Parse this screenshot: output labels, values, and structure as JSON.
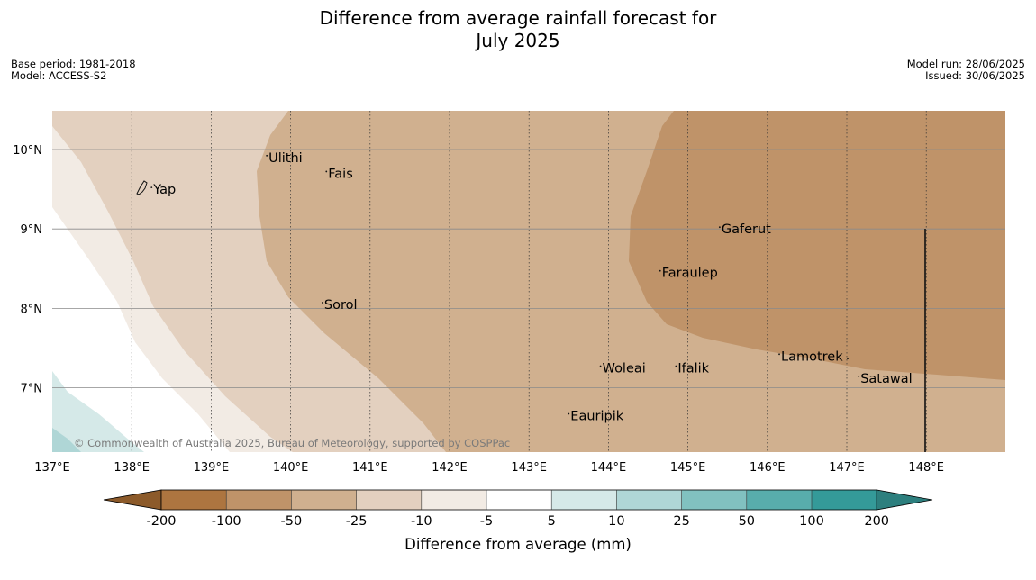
{
  "title": {
    "line1": "Difference from average rainfall forecast for",
    "line2": "July 2025"
  },
  "info_left": {
    "base_period": "Base period: 1981-2018",
    "model": "Model: ACCESS-S2"
  },
  "info_right": {
    "model_run": "Model run: 28/06/2025",
    "issued": "Issued: 30/06/2025"
  },
  "map": {
    "lon_range": [
      137,
      149
    ],
    "lat_range": [
      6.2,
      10.5
    ],
    "lon_ticks": [
      "137°E",
      "138°E",
      "139°E",
      "140°E",
      "141°E",
      "142°E",
      "143°E",
      "144°E",
      "145°E",
      "146°E",
      "147°E",
      "148°E"
    ],
    "lat_ticks": [
      "10°N",
      "9°N",
      "8°N",
      "7°N"
    ],
    "places": [
      {
        "name": "Yap",
        "lon": 138.25,
        "lat": 9.5
      },
      {
        "name": "Ulithi",
        "lon": 139.7,
        "lat": 9.9
      },
      {
        "name": "Fais",
        "lon": 140.45,
        "lat": 9.7
      },
      {
        "name": "Sorol",
        "lon": 140.4,
        "lat": 8.05
      },
      {
        "name": "Gaferut",
        "lon": 145.4,
        "lat": 9.0
      },
      {
        "name": "Faraulep",
        "lon": 144.65,
        "lat": 8.45
      },
      {
        "name": "Woleai",
        "lon": 143.9,
        "lat": 7.25
      },
      {
        "name": "Ifalik",
        "lon": 144.85,
        "lat": 7.25
      },
      {
        "name": "Lamotrek",
        "lon": 146.15,
        "lat": 7.4
      },
      {
        "name": "Satawal",
        "lon": 147.15,
        "lat": 7.12
      },
      {
        "name": "Eauripik",
        "lon": 143.5,
        "lat": 6.65
      }
    ],
    "copyright": "© Commonwealth of Australia 2025, Bureau of Meteorology, supported by COSPPac"
  },
  "colorbar": {
    "label": "Difference from average (mm)",
    "ticks": [
      "-200",
      "-100",
      "-50",
      "-25",
      "-10",
      "-5",
      "5",
      "10",
      "25",
      "50",
      "100",
      "200"
    ],
    "colors": [
      "#8c5a2a",
      "#ad7540",
      "#bf9369",
      "#d0b08f",
      "#e3d0bf",
      "#f2ebe4",
      "#ffffff",
      "#d5e9e8",
      "#afd6d6",
      "#81c1c0",
      "#58adac",
      "#349a99",
      "#2d7f7e"
    ]
  }
}
